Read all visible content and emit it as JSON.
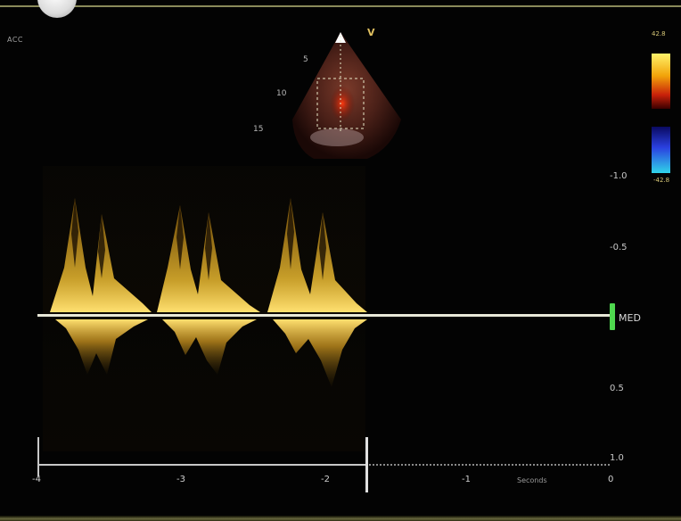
{
  "display": {
    "mode_label": "ACC",
    "orientation_marker": "V"
  },
  "depth_labels": [
    "5",
    "10",
    "15"
  ],
  "color_scale": {
    "top_label": "42.8",
    "bottom_label": "-42.8",
    "positive_color": "#f2a40a",
    "negative_color": "#2a40e0"
  },
  "velocity_scale": {
    "labels": [
      "-1.0",
      "-0.5",
      "",
      "0.5",
      "1.0"
    ],
    "baseline_label": "MED"
  },
  "time_axis": {
    "labels": [
      "-4",
      "-3",
      "-2",
      "-1",
      "0"
    ],
    "unit_label": "Seconds"
  },
  "doppler": {
    "signal_color": "#e8b830",
    "baseline_color": "#e8e8d8",
    "baseline_marker_color": "#4ed84e"
  }
}
